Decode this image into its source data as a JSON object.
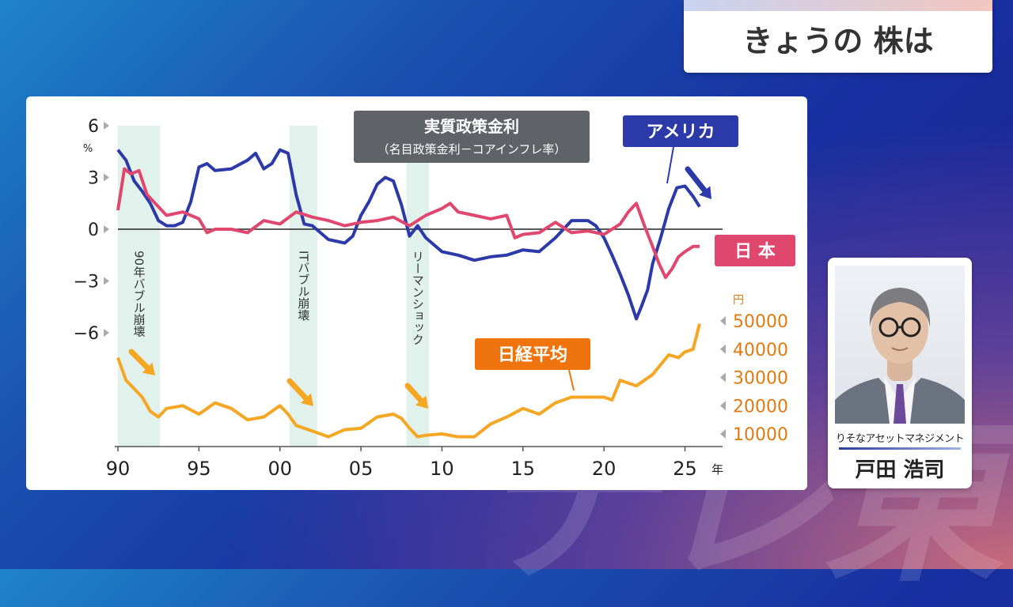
{
  "header": {
    "title": "きょうの 株は"
  },
  "colors": {
    "usa": "#2b3aa8",
    "japan": "#e0476e",
    "nikkei": "#f5a623",
    "nikkei_label_bg": "#f0740d",
    "shade": "#e1f2ec"
  },
  "chart_data": {
    "type": "line",
    "title": "実質政策金利",
    "subtitle": "（名目政策金利－コアインフレ率）",
    "x_axis": {
      "ticks": [
        "90",
        "95",
        "00",
        "05",
        "10",
        "15",
        "20",
        "25"
      ],
      "tick_values": [
        1990,
        1995,
        2000,
        2005,
        2010,
        2015,
        2020,
        2025
      ],
      "unit": "年",
      "range": [
        1990,
        2026.5
      ]
    },
    "y_left": {
      "ticks": [
        "6",
        "3",
        "0",
        "−3",
        "−6"
      ],
      "tick_values": [
        6,
        3,
        0,
        -3,
        -6
      ],
      "unit": "%",
      "range": [
        -6,
        6
      ]
    },
    "y_right": {
      "ticks": [
        "50000",
        "40000",
        "30000",
        "20000",
        "10000"
      ],
      "tick_values": [
        50000,
        40000,
        30000,
        20000,
        10000
      ],
      "unit": "円"
    },
    "series": [
      {
        "name": "アメリカ",
        "axis": "left",
        "x": [
          1990,
          1990.5,
          1991,
          1991.5,
          1992,
          1992.5,
          1993,
          1993.5,
          1994,
          1994.5,
          1995,
          1995.5,
          1996,
          1997,
          1998,
          1998.5,
          1999,
          1999.5,
          2000,
          2000.5,
          2001,
          2001.5,
          2002,
          2003,
          2004,
          2004.5,
          2005,
          2005.5,
          2006,
          2006.5,
          2007,
          2007.5,
          2008,
          2008.5,
          2009,
          2010,
          2011,
          2012,
          2013,
          2014,
          2015,
          2016,
          2017,
          2018,
          2019,
          2019.5,
          2020,
          2020.5,
          2021,
          2021.5,
          2022,
          2022.3,
          2022.7,
          2023,
          2023.5,
          2024,
          2024.5,
          2025,
          2025.5,
          2025.9
        ],
        "values": [
          4.6,
          4.0,
          2.8,
          2.2,
          1.5,
          0.5,
          0.2,
          0.2,
          0.4,
          1.6,
          3.6,
          3.8,
          3.4,
          3.5,
          4.0,
          4.4,
          3.5,
          3.8,
          4.6,
          4.4,
          2.0,
          0.3,
          0.2,
          -0.6,
          -0.8,
          -0.4,
          0.8,
          1.6,
          2.6,
          3.0,
          2.8,
          1.4,
          -0.4,
          0.2,
          -0.5,
          -1.3,
          -1.5,
          -1.8,
          -1.6,
          -1.5,
          -1.2,
          -1.3,
          -0.5,
          0.5,
          0.5,
          0.2,
          -0.5,
          -1.5,
          -2.6,
          -3.8,
          -5.2,
          -4.5,
          -3.5,
          -2.0,
          -0.5,
          1.2,
          2.4,
          2.5,
          1.9,
          1.3
        ]
      },
      {
        "name": "日本",
        "axis": "left",
        "x": [
          1990,
          1990.4,
          1990.8,
          1991.3,
          1991.8,
          1992.3,
          1993,
          1994,
          1995,
          1995.5,
          1996,
          1997,
          1998,
          1999,
          2000,
          2001,
          2002,
          2003,
          2004,
          2005,
          2006,
          2007,
          2008,
          2009,
          2010,
          2010.5,
          2011,
          2012,
          2013,
          2014,
          2014.5,
          2015,
          2016,
          2017,
          2018,
          2019,
          2020,
          2021,
          2021.5,
          2022,
          2022.5,
          2023,
          2023.4,
          2023.8,
          2024.2,
          2024.6,
          2025,
          2025.5,
          2025.9
        ],
        "values": [
          1.1,
          3.5,
          3.2,
          3.4,
          2.0,
          1.5,
          0.8,
          1.0,
          0.6,
          -0.2,
          0.0,
          0.0,
          -0.2,
          0.5,
          0.3,
          1.0,
          0.7,
          0.5,
          0.2,
          0.4,
          0.5,
          0.7,
          0.2,
          0.8,
          1.2,
          1.5,
          1.0,
          0.8,
          0.6,
          0.8,
          -0.5,
          -0.3,
          -0.2,
          0.4,
          -0.2,
          -0.1,
          -0.3,
          0.3,
          1.0,
          1.5,
          0.2,
          -1.0,
          -2.0,
          -2.8,
          -2.3,
          -1.6,
          -1.3,
          -1.0,
          -1.0
        ]
      },
      {
        "name": "日経平均",
        "axis": "right",
        "x": [
          1990,
          1990.5,
          1991,
          1991.5,
          1992,
          1992.5,
          1993,
          1994,
          1995,
          1996,
          1997,
          1998,
          1999,
          2000,
          2000.5,
          2001,
          2002,
          2003,
          2004,
          2005,
          2006,
          2007,
          2007.5,
          2008,
          2008.5,
          2009,
          2010,
          2011,
          2012,
          2013,
          2014,
          2015,
          2016,
          2017,
          2018,
          2019,
          2020,
          2020.5,
          2021,
          2022,
          2023,
          2024,
          2024.6,
          2025,
          2025.5,
          2025.9
        ],
        "values": [
          37000,
          29000,
          26000,
          23000,
          18000,
          16000,
          19000,
          20000,
          17000,
          21000,
          19000,
          15000,
          16000,
          20000,
          17000,
          13000,
          11000,
          9000,
          11500,
          12000,
          16000,
          17000,
          15500,
          12000,
          9000,
          9500,
          10000,
          9000,
          9000,
          13500,
          16000,
          19000,
          17000,
          21000,
          23000,
          23000,
          23000,
          22000,
          29000,
          27000,
          31000,
          38000,
          37000,
          39000,
          40000,
          49000
        ]
      }
    ],
    "shaded_periods": [
      {
        "label": "90年バブル崩壊",
        "from": 1990,
        "to": 1992.6
      },
      {
        "label": "ITバブル崩壊",
        "from": 2000.6,
        "to": 2002.3
      },
      {
        "label": "リーマンショック",
        "from": 2007.8,
        "to": 2009.2
      }
    ],
    "labels": {
      "usa": "アメリカ",
      "japan": "日 本",
      "nikkei": "日経平均"
    }
  },
  "guest": {
    "company": "りそなアセットマネジメント",
    "name": "戸田 浩司"
  },
  "watermark": "テレ東"
}
